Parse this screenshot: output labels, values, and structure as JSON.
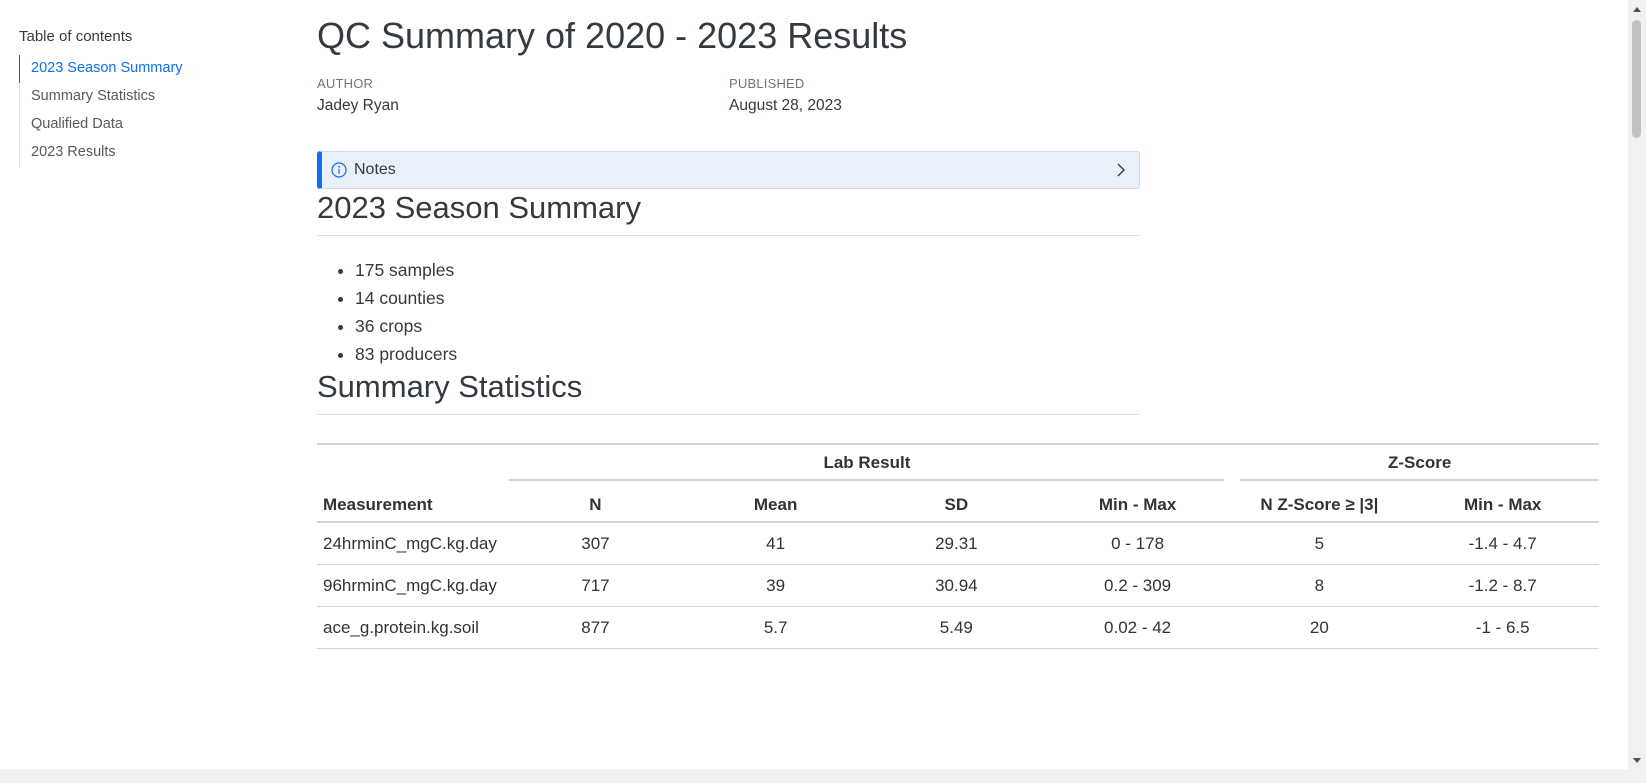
{
  "toc": {
    "title": "Table of contents",
    "items": [
      {
        "label": "2023 Season Summary"
      },
      {
        "label": "Summary Statistics"
      },
      {
        "label": "Qualified Data"
      },
      {
        "label": "2023 Results"
      }
    ]
  },
  "header": {
    "title": "QC Summary of 2020 - 2023 Results",
    "author_label": "Author",
    "author": "Jadey Ryan",
    "published_label": "Published",
    "published": "August 28, 2023"
  },
  "callout": {
    "icon": "info-icon",
    "title": "Notes",
    "accent_color": "#0d6efd"
  },
  "season_summary": {
    "heading": "2023 Season Summary",
    "bullets": [
      "175 samples",
      "14 counties",
      "36 crops",
      "83 producers"
    ]
  },
  "summary_statistics": {
    "heading": "Summary Statistics",
    "table": {
      "spanners": [
        "Lab Result",
        "Z-Score"
      ],
      "columns": [
        "Measurement",
        "N",
        "Mean",
        "SD",
        "Min - Max",
        "N Z-Score ≥ |3|",
        "Min - Max"
      ],
      "rows": [
        [
          "24hrminC_mgC.kg.day",
          "307",
          "41",
          "29.31",
          "0 - 178",
          "5",
          "-1.4 - 4.7"
        ],
        [
          "96hrminC_mgC.kg.day",
          "717",
          "39",
          "30.94",
          "0.2 - 309",
          "8",
          "-1.2 - 8.7"
        ],
        [
          "ace_g.protein.kg.soil",
          "877",
          "5.7",
          "5.49",
          "0.02 - 42",
          "20",
          "-1 - 6.5"
        ]
      ]
    }
  }
}
